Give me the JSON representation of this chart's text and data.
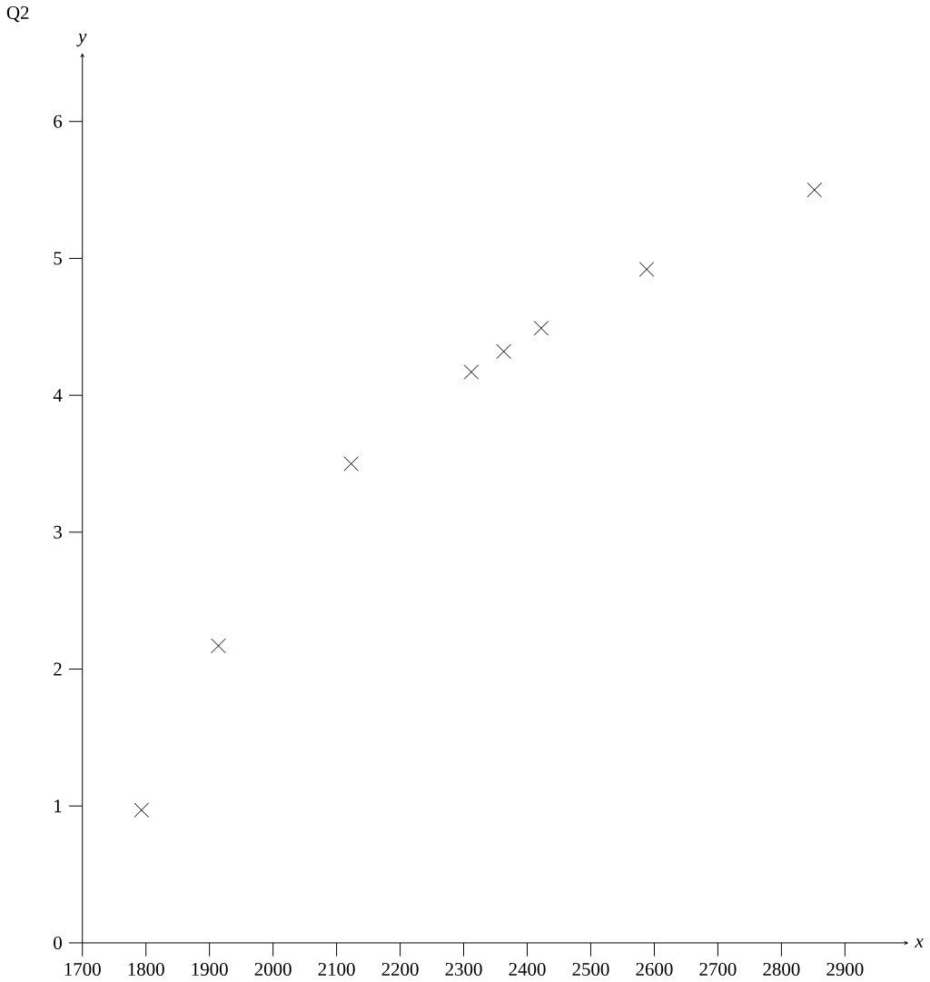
{
  "chart_data": {
    "type": "scatter",
    "title": "Q2",
    "xlabel": "*x*",
    "ylabel": "*y*",
    "x": [
      1793,
      1914,
      2123,
      2312,
      2363,
      2422,
      2588,
      2852
    ],
    "values": [
      0.97,
      2.17,
      3.5,
      4.17,
      4.32,
      4.49,
      4.92,
      5.5
    ],
    "color": "#000000",
    "marker": "cross",
    "xlim": [
      1700,
      3000
    ],
    "ylim": [
      0,
      6.5
    ],
    "xticks": [
      1700,
      1800,
      1900,
      2000,
      2100,
      2200,
      2300,
      2400,
      2500,
      2600,
      2700,
      2800,
      2900
    ],
    "yticks": [
      0,
      1,
      2,
      3,
      4,
      5,
      6
    ]
  }
}
